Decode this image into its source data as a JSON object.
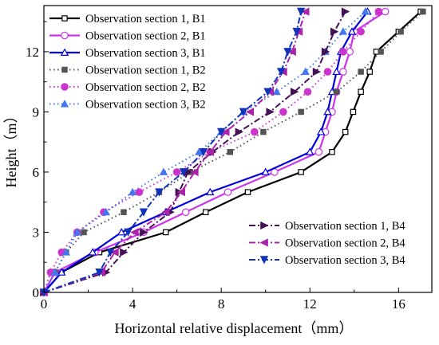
{
  "chart_data": {
    "type": "line",
    "xlabel": "Horizontal relative displacement（mm）",
    "ylabel": "Height（m）",
    "xlim": [
      0,
      17.5
    ],
    "ylim": [
      0,
      14.3
    ],
    "x_ticks": [
      0,
      4,
      8,
      12,
      16
    ],
    "y_ticks": [
      0,
      3,
      6,
      9,
      12
    ],
    "grid": false,
    "legend": [
      {
        "placement": "top-left",
        "series": [
          0,
          1,
          2,
          3,
          4,
          5
        ]
      },
      {
        "placement": "bottom-right",
        "series": [
          6,
          7,
          8
        ]
      }
    ],
    "series": [
      {
        "name": "Observation section 1, B1",
        "color": "#000000",
        "dash": "solid",
        "marker": "square-open",
        "points": [
          [
            0,
            0
          ],
          [
            0.8,
            1
          ],
          [
            2.5,
            2
          ],
          [
            5.5,
            3
          ],
          [
            7.3,
            4
          ],
          [
            9.2,
            5
          ],
          [
            11.6,
            6
          ],
          [
            13,
            7
          ],
          [
            13.6,
            8
          ],
          [
            13.95,
            9
          ],
          [
            14.3,
            10
          ],
          [
            14.7,
            11
          ],
          [
            15,
            12
          ],
          [
            16,
            13
          ],
          [
            17,
            14
          ]
        ]
      },
      {
        "name": "Observation section 2, B1",
        "color": "#cc33ee",
        "dash": "solid",
        "marker": "circle-open",
        "points": [
          [
            0,
            0
          ],
          [
            0.5,
            1
          ],
          [
            2.3,
            2
          ],
          [
            4.5,
            3
          ],
          [
            6.4,
            4
          ],
          [
            8.3,
            5
          ],
          [
            10.4,
            6
          ],
          [
            12.4,
            7
          ],
          [
            12.7,
            8
          ],
          [
            13,
            9
          ],
          [
            13.2,
            10
          ],
          [
            13.5,
            11
          ],
          [
            13.8,
            12
          ],
          [
            14,
            13
          ],
          [
            15.4,
            14
          ]
        ]
      },
      {
        "name": "Observation section 3, B1",
        "color": "#0000dd",
        "dash": "solid",
        "marker": "triangle-open",
        "points": [
          [
            0,
            0
          ],
          [
            0.8,
            1
          ],
          [
            2.2,
            2
          ],
          [
            3.5,
            3
          ],
          [
            5.5,
            4
          ],
          [
            7.5,
            5
          ],
          [
            10,
            6
          ],
          [
            12,
            7
          ],
          [
            12.5,
            8
          ],
          [
            12.8,
            9
          ],
          [
            13,
            10
          ],
          [
            13.2,
            11
          ],
          [
            13.4,
            12
          ],
          [
            13.9,
            13
          ],
          [
            14.6,
            14
          ]
        ]
      },
      {
        "name": "Observation section 1, B2",
        "color": "#555555",
        "dash": "dot",
        "marker": "square-filled",
        "points": [
          [
            0,
            0
          ],
          [
            0.5,
            1
          ],
          [
            1,
            2
          ],
          [
            1.8,
            3
          ],
          [
            3.6,
            4
          ],
          [
            5.2,
            5
          ],
          [
            6.6,
            6
          ],
          [
            8.4,
            7
          ],
          [
            9.9,
            8
          ],
          [
            11.6,
            9
          ],
          [
            13.2,
            10
          ],
          [
            14.3,
            11
          ],
          [
            15.2,
            12
          ],
          [
            16.1,
            13
          ],
          [
            17.1,
            14
          ]
        ]
      },
      {
        "name": "Observation section 2, B2",
        "color": "#cc33cc",
        "dash": "dot",
        "marker": "circle-filled",
        "points": [
          [
            0,
            0
          ],
          [
            0.3,
            1
          ],
          [
            0.8,
            2
          ],
          [
            1.5,
            3
          ],
          [
            2.7,
            4
          ],
          [
            4.3,
            5
          ],
          [
            6,
            6
          ],
          [
            7.5,
            7
          ],
          [
            9.5,
            8
          ],
          [
            10.8,
            9
          ],
          [
            11.9,
            10
          ],
          [
            12.8,
            11
          ],
          [
            13.5,
            12
          ],
          [
            14.3,
            13
          ],
          [
            15.1,
            14
          ]
        ]
      },
      {
        "name": "Observation section 3, B2",
        "color": "#4477ee",
        "dash": "dot",
        "marker": "triangle-filled",
        "points": [
          [
            0,
            0
          ],
          [
            0.5,
            1
          ],
          [
            1,
            2
          ],
          [
            1.5,
            3
          ],
          [
            2.8,
            4
          ],
          [
            4,
            5
          ],
          [
            5.4,
            6
          ],
          [
            7,
            7
          ],
          [
            8,
            8
          ],
          [
            9,
            9
          ],
          [
            10.5,
            10
          ],
          [
            11.8,
            11
          ],
          [
            12.7,
            12
          ],
          [
            13.5,
            13
          ],
          [
            14.5,
            14
          ]
        ]
      },
      {
        "name": "Observation section 1, B4",
        "color": "#441155",
        "dash": "dashdot",
        "marker": "triangle-right-filled",
        "points": [
          [
            0,
            0
          ],
          [
            2.8,
            1
          ],
          [
            3.6,
            2
          ],
          [
            4.5,
            3
          ],
          [
            5.7,
            4
          ],
          [
            6.1,
            5
          ],
          [
            6.5,
            6
          ],
          [
            7.6,
            7
          ],
          [
            8.8,
            8
          ],
          [
            10.2,
            9
          ],
          [
            11.3,
            10
          ],
          [
            12.3,
            11
          ],
          [
            12.7,
            12
          ],
          [
            13.1,
            13
          ],
          [
            13.6,
            14
          ]
        ]
      },
      {
        "name": "Observation section 2, B4",
        "color": "#aa22aa",
        "dash": "dashdot",
        "marker": "triangle-left-filled",
        "points": [
          [
            0,
            0
          ],
          [
            2.6,
            1
          ],
          [
            3.2,
            2
          ],
          [
            4.1,
            3
          ],
          [
            5.5,
            4
          ],
          [
            6.2,
            5
          ],
          [
            6.8,
            6
          ],
          [
            7.5,
            7
          ],
          [
            8.2,
            8
          ],
          [
            9.3,
            9
          ],
          [
            10.2,
            10
          ],
          [
            10.8,
            11
          ],
          [
            11.2,
            12
          ],
          [
            11.5,
            13
          ],
          [
            11.8,
            14
          ]
        ]
      },
      {
        "name": "Observation section 3, B4",
        "color": "#1133bb",
        "dash": "dashdot",
        "marker": "triangle-down-filled",
        "points": [
          [
            0,
            0
          ],
          [
            2.5,
            1
          ],
          [
            3,
            2
          ],
          [
            3.8,
            3
          ],
          [
            4.5,
            4
          ],
          [
            5.2,
            5
          ],
          [
            6.3,
            6
          ],
          [
            7.2,
            7
          ],
          [
            8,
            8
          ],
          [
            9,
            9
          ],
          [
            10.1,
            10
          ],
          [
            10.7,
            11
          ],
          [
            11,
            12
          ],
          [
            11.4,
            13
          ],
          [
            11.6,
            14
          ]
        ]
      }
    ]
  }
}
